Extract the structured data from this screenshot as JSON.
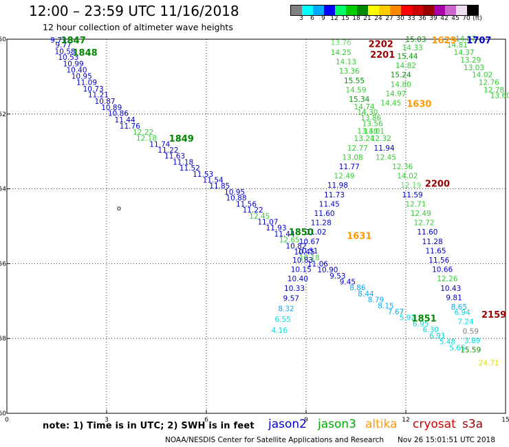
{
  "header": {
    "title": "12:00 – 23:59 UTC 11/16/2018",
    "subtitle": "12 hour collection of altimeter wave heights"
  },
  "legend": {
    "colors": [
      "#808080",
      "#00ffff",
      "#00aaff",
      "#0000ff",
      "#00ff66",
      "#00cc00",
      "#008800",
      "#ffff00",
      "#ffcc00",
      "#ff8800",
      "#ff0000",
      "#cc0000",
      "#990000",
      "#aa00aa",
      "#cc66cc",
      "#eeddee",
      "#000000"
    ],
    "labels": [
      "3",
      "6",
      "9",
      "12",
      "15",
      "18",
      "21",
      "24",
      "27",
      "30",
      "33",
      "36",
      "39",
      "42",
      "45",
      "70",
      "(ft)"
    ]
  },
  "axes": {
    "x_ticks": [
      "0",
      "3",
      "6",
      "9",
      "12",
      "15"
    ],
    "y_ticks": [
      "-50",
      "-52",
      "-54",
      "-56",
      "-58",
      "-60"
    ]
  },
  "note": "note: 1) Time is in UTC; 2) SWH is in feet",
  "satellites": [
    {
      "name": "jason2",
      "color": "#0000cc"
    },
    {
      "name": "jason3",
      "color": "#00aa00"
    },
    {
      "name": "altika",
      "color": "#ff9900"
    },
    {
      "name": "cryosat",
      "color": "#cc0000"
    },
    {
      "name": "s3a",
      "color": "#990000"
    }
  ],
  "footer": {
    "credit": "NOAA/NESDIS Center for Satellite Applications and Research",
    "stamp": "Nov 26 15:01:51 UTC 2018"
  },
  "map_data": {
    "x_range": [
      0,
      15
    ],
    "y_range": [
      -60,
      -50
    ],
    "tracks": [
      {
        "id": "t1",
        "points": [
          {
            "x": 1.55,
            "y": -50.02,
            "v": "9.73",
            "c": "#0000cc"
          },
          {
            "x": 1.7,
            "y": -50.15,
            "v": "9.77",
            "c": "#0000cc"
          },
          {
            "x": 1.75,
            "y": -50.32,
            "v": "10.58",
            "c": "#0000cc"
          },
          {
            "x": 1.85,
            "y": -50.48,
            "v": "10.53",
            "c": "#0000cc"
          },
          {
            "x": 2.0,
            "y": -50.65,
            "v": "10.99",
            "c": "#0000cc"
          },
          {
            "x": 2.1,
            "y": -50.82,
            "v": "10.40",
            "c": "#0000cc"
          },
          {
            "x": 2.25,
            "y": -50.98,
            "v": "10.95",
            "c": "#0000cc"
          },
          {
            "x": 2.4,
            "y": -51.15,
            "v": "11.09",
            "c": "#0000cc"
          },
          {
            "x": 2.6,
            "y": -51.32,
            "v": "10.73",
            "c": "#0000cc"
          },
          {
            "x": 2.75,
            "y": -51.48,
            "v": "11.21",
            "c": "#0000cc"
          },
          {
            "x": 2.95,
            "y": -51.65,
            "v": "10.87",
            "c": "#0000cc"
          },
          {
            "x": 3.15,
            "y": -51.82,
            "v": "10.89",
            "c": "#0000cc"
          },
          {
            "x": 3.35,
            "y": -51.98,
            "v": "10.86",
            "c": "#0000cc"
          },
          {
            "x": 3.55,
            "y": -52.15,
            "v": "11.44",
            "c": "#0000cc"
          },
          {
            "x": 3.7,
            "y": -52.32,
            "v": "11.76",
            "c": "#0000cc"
          },
          {
            "x": 4.1,
            "y": -52.48,
            "v": "12.22",
            "c": "#33cc33"
          },
          {
            "x": 4.2,
            "y": -52.64,
            "v": "12.18",
            "c": "#33cc33"
          },
          {
            "x": 4.6,
            "y": -52.8,
            "v": "11.74",
            "c": "#0000cc"
          },
          {
            "x": 4.85,
            "y": -52.96,
            "v": "11.22",
            "c": "#0000cc"
          },
          {
            "x": 5.05,
            "y": -53.12,
            "v": "11.63",
            "c": "#0000cc"
          },
          {
            "x": 5.3,
            "y": -53.28,
            "v": "11.18",
            "c": "#0000cc"
          },
          {
            "x": 5.5,
            "y": -53.44,
            "v": "11.52",
            "c": "#0000cc"
          },
          {
            "x": 5.9,
            "y": -53.6,
            "v": "11.53",
            "c": "#0000cc"
          },
          {
            "x": 6.2,
            "y": -53.76,
            "v": "11.54",
            "c": "#0000cc"
          },
          {
            "x": 6.4,
            "y": -53.92,
            "v": "11.85",
            "c": "#0000cc"
          },
          {
            "x": 6.85,
            "y": -54.08,
            "v": "10.95",
            "c": "#0000cc"
          },
          {
            "x": 6.9,
            "y": -54.24,
            "v": "10.88",
            "c": "#0000cc"
          },
          {
            "x": 7.2,
            "y": -54.4,
            "v": "11.56",
            "c": "#0000cc"
          },
          {
            "x": 7.4,
            "y": -54.56,
            "v": "11.22",
            "c": "#0000cc"
          },
          {
            "x": 7.6,
            "y": -54.72,
            "v": "12.45",
            "c": "#33cc33"
          },
          {
            "x": 7.85,
            "y": -54.88,
            "v": "11.07",
            "c": "#0000cc"
          },
          {
            "x": 8.1,
            "y": -55.04,
            "v": "11.93",
            "c": "#0000cc"
          },
          {
            "x": 8.35,
            "y": -55.2,
            "v": "11.44",
            "c": "#0000cc"
          },
          {
            "x": 8.5,
            "y": -55.36,
            "v": "12.65",
            "c": "#33cc33"
          },
          {
            "x": 8.7,
            "y": -55.52,
            "v": "10.82",
            "c": "#0000cc"
          },
          {
            "x": 8.95,
            "y": -55.68,
            "v": "10.45",
            "c": "#0000cc"
          },
          {
            "x": 9.1,
            "y": -55.84,
            "v": "10.18",
            "c": "#33cc33"
          },
          {
            "x": 9.35,
            "y": -56.0,
            "v": "11.06",
            "c": "#0000cc"
          },
          {
            "x": 9.65,
            "y": -56.16,
            "v": "10.90",
            "c": "#0000cc"
          },
          {
            "x": 9.95,
            "y": -56.32,
            "v": "9.53",
            "c": "#0000cc"
          },
          {
            "x": 10.25,
            "y": -56.48,
            "v": "9.45",
            "c": "#0000cc"
          },
          {
            "x": 10.55,
            "y": -56.64,
            "v": "8.86",
            "c": "#00aaff"
          },
          {
            "x": 10.8,
            "y": -56.8,
            "v": "8.44",
            "c": "#00aaff"
          },
          {
            "x": 11.1,
            "y": -56.96,
            "v": "8.79",
            "c": "#00aaff"
          },
          {
            "x": 11.4,
            "y": -57.12,
            "v": "8.15",
            "c": "#00aaff"
          },
          {
            "x": 11.7,
            "y": -57.28,
            "v": "7.67",
            "c": "#00aaff"
          },
          {
            "x": 12.05,
            "y": -57.44,
            "v": "5.92",
            "c": "#00dddd"
          },
          {
            "x": 12.45,
            "y": -57.6,
            "v": "6.95",
            "c": "#00dddd"
          },
          {
            "x": 12.75,
            "y": -57.76,
            "v": "6.30",
            "c": "#00dddd"
          },
          {
            "x": 12.95,
            "y": -57.92,
            "v": "6.91",
            "c": "#00dddd"
          },
          {
            "x": 13.25,
            "y": -58.08,
            "v": "5.48",
            "c": "#00dddd"
          },
          {
            "x": 13.55,
            "y": -58.24,
            "v": "5.65",
            "c": "#00dddd"
          }
        ]
      },
      {
        "id": "t2",
        "points": [
          {
            "x": 10.05,
            "y": -50.08,
            "v": "13.76",
            "c": "#66dd66"
          },
          {
            "x": 10.05,
            "y": -50.35,
            "v": "14.25",
            "c": "#33cc33"
          },
          {
            "x": 10.2,
            "y": -50.6,
            "v": "14.13",
            "c": "#33cc33"
          },
          {
            "x": 10.3,
            "y": -50.85,
            "v": "13.36",
            "c": "#33cc33"
          },
          {
            "x": 10.45,
            "y": -51.1,
            "v": "15.55",
            "c": "#009900"
          },
          {
            "x": 10.5,
            "y": -51.35,
            "v": "14.59",
            "c": "#33cc33"
          },
          {
            "x": 10.6,
            "y": -51.6,
            "v": "15.34",
            "c": "#009900"
          },
          {
            "x": 10.75,
            "y": -51.8,
            "v": "14.74",
            "c": "#33cc33"
          },
          {
            "x": 10.85,
            "y": -51.95,
            "v": "14.30",
            "c": "#33cc33"
          },
          {
            "x": 10.95,
            "y": -52.1,
            "v": "13.86",
            "c": "#33cc33"
          },
          {
            "x": 11.0,
            "y": -52.25,
            "v": "13.56",
            "c": "#33cc33"
          },
          {
            "x": 10.85,
            "y": -52.45,
            "v": "13.40",
            "c": "#33cc33"
          },
          {
            "x": 11.05,
            "y": -52.45,
            "v": "13.01",
            "c": "#33cc33"
          },
          {
            "x": 10.75,
            "y": -52.65,
            "v": "13.24",
            "c": "#33cc33"
          },
          {
            "x": 11.25,
            "y": -52.65,
            "v": "12.32",
            "c": "#33cc33"
          },
          {
            "x": 10.55,
            "y": -52.9,
            "v": "12.77",
            "c": "#33cc33"
          },
          {
            "x": 11.35,
            "y": -52.9,
            "v": "11.94",
            "c": "#0000cc"
          },
          {
            "x": 10.4,
            "y": -53.15,
            "v": "13.08",
            "c": "#33cc33"
          },
          {
            "x": 11.4,
            "y": -53.15,
            "v": "12.45",
            "c": "#33cc33"
          },
          {
            "x": 10.3,
            "y": -53.4,
            "v": "11.77",
            "c": "#0000cc"
          },
          {
            "x": 10.15,
            "y": -53.65,
            "v": "12.49",
            "c": "#33cc33"
          },
          {
            "x": 9.95,
            "y": -53.9,
            "v": "11.98",
            "c": "#0000cc"
          },
          {
            "x": 9.85,
            "y": -54.15,
            "v": "11.73",
            "c": "#0000cc"
          },
          {
            "x": 9.7,
            "y": -54.4,
            "v": "11.45",
            "c": "#0000cc"
          },
          {
            "x": 9.55,
            "y": -54.65,
            "v": "11.60",
            "c": "#0000cc"
          },
          {
            "x": 9.45,
            "y": -54.9,
            "v": "11.28",
            "c": "#0000cc"
          },
          {
            "x": 9.3,
            "y": -55.15,
            "v": "11.02",
            "c": "#0000cc"
          },
          {
            "x": 9.1,
            "y": -55.4,
            "v": "10.67",
            "c": "#0000cc"
          },
          {
            "x": 9.05,
            "y": -55.65,
            "v": "10.51",
            "c": "#0000cc"
          },
          {
            "x": 8.9,
            "y": -55.9,
            "v": "10.83",
            "c": "#0000cc"
          },
          {
            "x": 8.85,
            "y": -56.15,
            "v": "10.15",
            "c": "#0000cc"
          },
          {
            "x": 8.75,
            "y": -56.4,
            "v": "10.40",
            "c": "#0000cc"
          },
          {
            "x": 8.65,
            "y": -56.65,
            "v": "10.33",
            "c": "#0000cc"
          },
          {
            "x": 8.55,
            "y": -56.92,
            "v": "9.57",
            "c": "#0000cc"
          },
          {
            "x": 8.4,
            "y": -57.2,
            "v": "8.32",
            "c": "#00aaff"
          },
          {
            "x": 8.3,
            "y": -57.48,
            "v": "6.55",
            "c": "#00dddd"
          },
          {
            "x": 8.2,
            "y": -57.78,
            "v": "4.16",
            "c": "#00dddd"
          }
        ]
      },
      {
        "id": "t3",
        "points": [
          {
            "x": 12.3,
            "y": -50.0,
            "v": "15.03",
            "c": "#009900"
          },
          {
            "x": 12.2,
            "y": -50.22,
            "v": "14.33",
            "c": "#33cc33"
          },
          {
            "x": 12.05,
            "y": -50.45,
            "v": "15.44",
            "c": "#009900"
          },
          {
            "x": 12.0,
            "y": -50.7,
            "v": "14.82",
            "c": "#33cc33"
          },
          {
            "x": 11.85,
            "y": -50.95,
            "v": "15.24",
            "c": "#009900"
          },
          {
            "x": 11.85,
            "y": -51.2,
            "v": "14.80",
            "c": "#33cc33"
          },
          {
            "x": 11.7,
            "y": -51.45,
            "v": "14.97",
            "c": "#33cc33"
          },
          {
            "x": 11.55,
            "y": -51.7,
            "v": "14.45",
            "c": "#33cc33"
          },
          {
            "x": 11.9,
            "y": -53.4,
            "v": "12.36",
            "c": "#33cc33"
          },
          {
            "x": 12.05,
            "y": -53.65,
            "v": "14.02",
            "c": "#33cc33"
          },
          {
            "x": 12.15,
            "y": -53.9,
            "v": "12.19",
            "c": "#66dd66"
          },
          {
            "x": 12.2,
            "y": -54.15,
            "v": "11.59",
            "c": "#0000cc"
          },
          {
            "x": 12.3,
            "y": -54.4,
            "v": "12.71",
            "c": "#33cc33"
          },
          {
            "x": 12.45,
            "y": -54.65,
            "v": "12.49",
            "c": "#33cc33"
          },
          {
            "x": 12.55,
            "y": -54.9,
            "v": "12.72",
            "c": "#33cc33"
          },
          {
            "x": 12.65,
            "y": -55.15,
            "v": "11.60",
            "c": "#0000cc"
          },
          {
            "x": 12.8,
            "y": -55.4,
            "v": "11.28",
            "c": "#0000cc"
          },
          {
            "x": 12.9,
            "y": -55.65,
            "v": "11.65",
            "c": "#0000cc"
          },
          {
            "x": 13.0,
            "y": -55.9,
            "v": "11.56",
            "c": "#0000cc"
          },
          {
            "x": 13.1,
            "y": -56.15,
            "v": "10.66",
            "c": "#0000cc"
          },
          {
            "x": 13.25,
            "y": -56.4,
            "v": "12.26",
            "c": "#33cc33"
          },
          {
            "x": 13.35,
            "y": -56.65,
            "v": "10.43",
            "c": "#0000cc"
          },
          {
            "x": 13.45,
            "y": -56.9,
            "v": "9.81",
            "c": "#0000cc"
          },
          {
            "x": 13.6,
            "y": -57.15,
            "v": "8.65",
            "c": "#00aaff"
          },
          {
            "x": 13.7,
            "y": -57.3,
            "v": "6.94",
            "c": "#00dddd"
          },
          {
            "x": 13.8,
            "y": -57.55,
            "v": "7.24",
            "c": "#00dddd"
          },
          {
            "x": 13.95,
            "y": -57.8,
            "v": "0.59",
            "c": "#808080"
          },
          {
            "x": 14.0,
            "y": -58.05,
            "v": "3.89",
            "c": "#00dddd"
          },
          {
            "x": 13.95,
            "y": -58.3,
            "v": "15.59",
            "c": "#009900"
          },
          {
            "x": 14.5,
            "y": -58.65,
            "v": "24.71",
            "c": "#dddd00"
          }
        ]
      },
      {
        "id": "t4",
        "points": [
          {
            "x": 13.8,
            "y": -49.98,
            "v": "14.27",
            "c": "#33cc33"
          },
          {
            "x": 13.55,
            "y": -50.15,
            "v": "14.81",
            "c": "#33cc33"
          },
          {
            "x": 13.75,
            "y": -50.35,
            "v": "14.37",
            "c": "#33cc33"
          },
          {
            "x": 13.95,
            "y": -50.55,
            "v": "13.29",
            "c": "#33cc33"
          },
          {
            "x": 14.05,
            "y": -50.75,
            "v": "13.03",
            "c": "#33cc33"
          },
          {
            "x": 14.3,
            "y": -50.95,
            "v": "14.02",
            "c": "#33cc33"
          },
          {
            "x": 14.5,
            "y": -51.15,
            "v": "12.76",
            "c": "#33cc33"
          },
          {
            "x": 14.65,
            "y": -51.35,
            "v": "12.78",
            "c": "#33cc33"
          },
          {
            "x": 14.85,
            "y": -51.5,
            "v": "13.60",
            "c": "#33cc33"
          }
        ]
      }
    ],
    "labels": [
      {
        "x": 2.0,
        "y": -50.02,
        "text": "1847",
        "color": "#008800"
      },
      {
        "x": 2.35,
        "y": -50.35,
        "text": "1848",
        "color": "#008800"
      },
      {
        "x": 5.25,
        "y": -52.65,
        "text": "1849",
        "color": "#008800"
      },
      {
        "x": 8.85,
        "y": -55.15,
        "text": "1850",
        "color": "#008800"
      },
      {
        "x": 12.55,
        "y": -57.45,
        "text": "1851",
        "color": "#008800"
      },
      {
        "x": 13.15,
        "y": -50.02,
        "text": "1629",
        "color": "#ff9900"
      },
      {
        "x": 12.4,
        "y": -51.72,
        "text": "1630",
        "color": "#ff9900"
      },
      {
        "x": 10.6,
        "y": -55.25,
        "text": "1631",
        "color": "#ff9900"
      },
      {
        "x": 11.25,
        "y": -50.12,
        "text": "2202",
        "color": "#990000"
      },
      {
        "x": 11.3,
        "y": -50.4,
        "text": "2201",
        "color": "#990000"
      },
      {
        "x": 12.95,
        "y": -53.85,
        "text": "2200",
        "color": "#990000"
      },
      {
        "x": 14.65,
        "y": -57.35,
        "text": "2159",
        "color": "#990000"
      },
      {
        "x": 14.2,
        "y": -50.02,
        "text": "1707",
        "color": "#0000cc"
      }
    ],
    "markers": [
      {
        "x": 3.37,
        "y": -54.5,
        "text": "o",
        "color": "#000000"
      }
    ]
  }
}
